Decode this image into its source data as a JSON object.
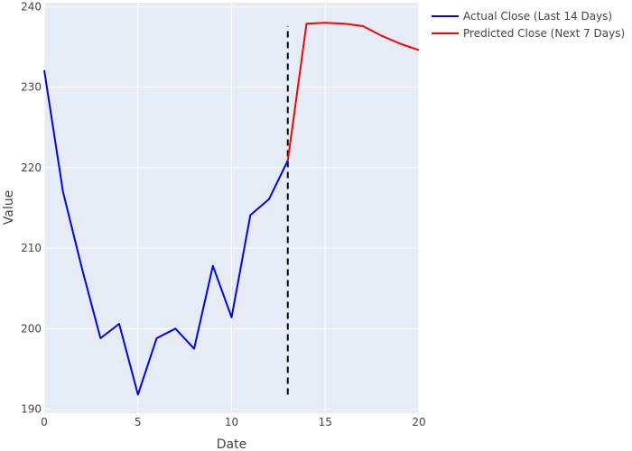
{
  "chart_data": {
    "type": "line",
    "title": "",
    "xlabel": "Date",
    "ylabel": "Value",
    "xlim": [
      0,
      20
    ],
    "ylim": [
      189.5,
      240.5
    ],
    "x_ticks": [
      0,
      5,
      10,
      15,
      20
    ],
    "y_ticks": [
      190,
      200,
      210,
      220,
      230,
      240
    ],
    "grid": true,
    "legend_position": "top-right-outside",
    "plot_background": "#E5ECF6",
    "grid_color": "#ffffff",
    "series": [
      {
        "name": "Actual Close (Last 14 Days)",
        "color": "#0000FF",
        "x": [
          0,
          1,
          2,
          3,
          4,
          5,
          6,
          7,
          8,
          9,
          10,
          11,
          12,
          13
        ],
        "y": [
          232.1,
          217.0,
          207.6,
          198.8,
          200.6,
          191.8,
          198.8,
          200.0,
          197.5,
          207.8,
          201.4,
          214.1,
          216.1,
          220.9
        ]
      },
      {
        "name": "Predicted Close (Next 7 Days)",
        "color": "#FF0000",
        "x": [
          13,
          14,
          15,
          16,
          17,
          18,
          19,
          20
        ],
        "y": [
          220.9,
          237.9,
          238.0,
          237.9,
          237.6,
          236.4,
          235.4,
          234.6
        ]
      }
    ],
    "annotations": [
      {
        "type": "vertical-dashed-line",
        "x": 13,
        "y_range": [
          191.8,
          237.6
        ],
        "color": "#000000"
      }
    ]
  }
}
